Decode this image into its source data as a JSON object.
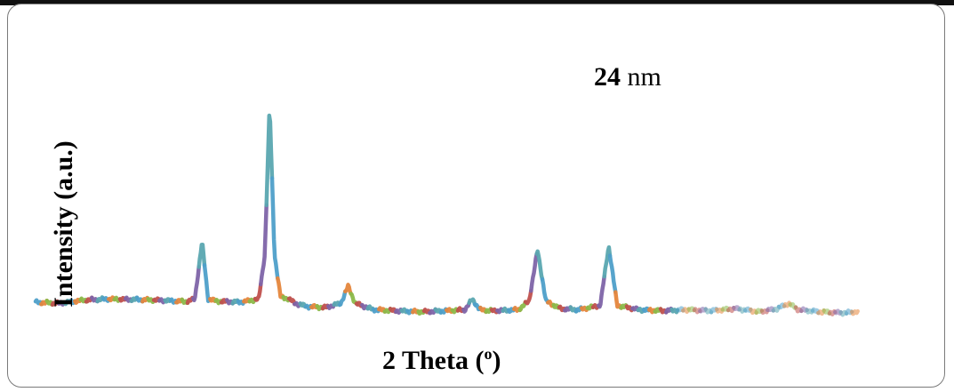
{
  "chart_data": {
    "type": "line",
    "xlabel": "2 Theta (°)",
    "xlabel_main": "2 Theta (",
    "xlabel_sup": "o",
    "xlabel_close": ")",
    "ylabel": "Intensity (a.u.)",
    "annotation": {
      "value": "24",
      "unit": "nm"
    },
    "xlim": [
      10,
      80
    ],
    "ylim": [
      0,
      1
    ],
    "grid": false,
    "legend": "none",
    "series": [
      {
        "line_colors": [
          "#4e9fc9",
          "#e5863c",
          "#8bb94a",
          "#c0504d",
          "#7e64a8",
          "#5aa6b0"
        ],
        "points": [
          [
            10.0,
            0.075
          ],
          [
            12.0,
            0.07
          ],
          [
            14.0,
            0.085
          ],
          [
            16.0,
            0.09
          ],
          [
            18.0,
            0.088
          ],
          [
            20.0,
            0.085
          ],
          [
            22.5,
            0.078
          ],
          [
            23.2,
            0.09
          ],
          [
            23.8,
            0.36
          ],
          [
            24.3,
            0.09
          ],
          [
            25.0,
            0.08
          ],
          [
            27.0,
            0.075
          ],
          [
            28.5,
            0.09
          ],
          [
            29.0,
            0.3
          ],
          [
            29.4,
            1.0
          ],
          [
            29.8,
            0.3
          ],
          [
            30.3,
            0.1
          ],
          [
            31.0,
            0.09
          ],
          [
            31.5,
            0.07
          ],
          [
            32.5,
            0.055
          ],
          [
            34.0,
            0.05
          ],
          [
            35.3,
            0.07
          ],
          [
            35.9,
            0.15
          ],
          [
            36.5,
            0.07
          ],
          [
            38.0,
            0.04
          ],
          [
            40.0,
            0.035
          ],
          [
            42.0,
            0.03
          ],
          [
            44.0,
            0.035
          ],
          [
            45.6,
            0.04
          ],
          [
            46.2,
            0.09
          ],
          [
            46.8,
            0.04
          ],
          [
            48.0,
            0.035
          ],
          [
            50.0,
            0.04
          ],
          [
            50.9,
            0.08
          ],
          [
            51.6,
            0.32
          ],
          [
            52.3,
            0.08
          ],
          [
            53.5,
            0.045
          ],
          [
            55.0,
            0.04
          ],
          [
            56.8,
            0.06
          ],
          [
            57.5,
            0.34
          ],
          [
            58.2,
            0.06
          ],
          [
            60.0,
            0.04
          ],
          [
            62.0,
            0.035
          ],
          [
            64.0,
            0.04
          ],
          [
            66.0,
            0.035
          ],
          [
            68.0,
            0.045
          ],
          [
            70.0,
            0.03
          ],
          [
            71.5,
            0.045
          ],
          [
            72.4,
            0.07
          ],
          [
            73.2,
            0.04
          ],
          [
            75.0,
            0.03
          ],
          [
            77.0,
            0.025
          ],
          [
            78.0,
            0.03
          ]
        ]
      }
    ]
  }
}
